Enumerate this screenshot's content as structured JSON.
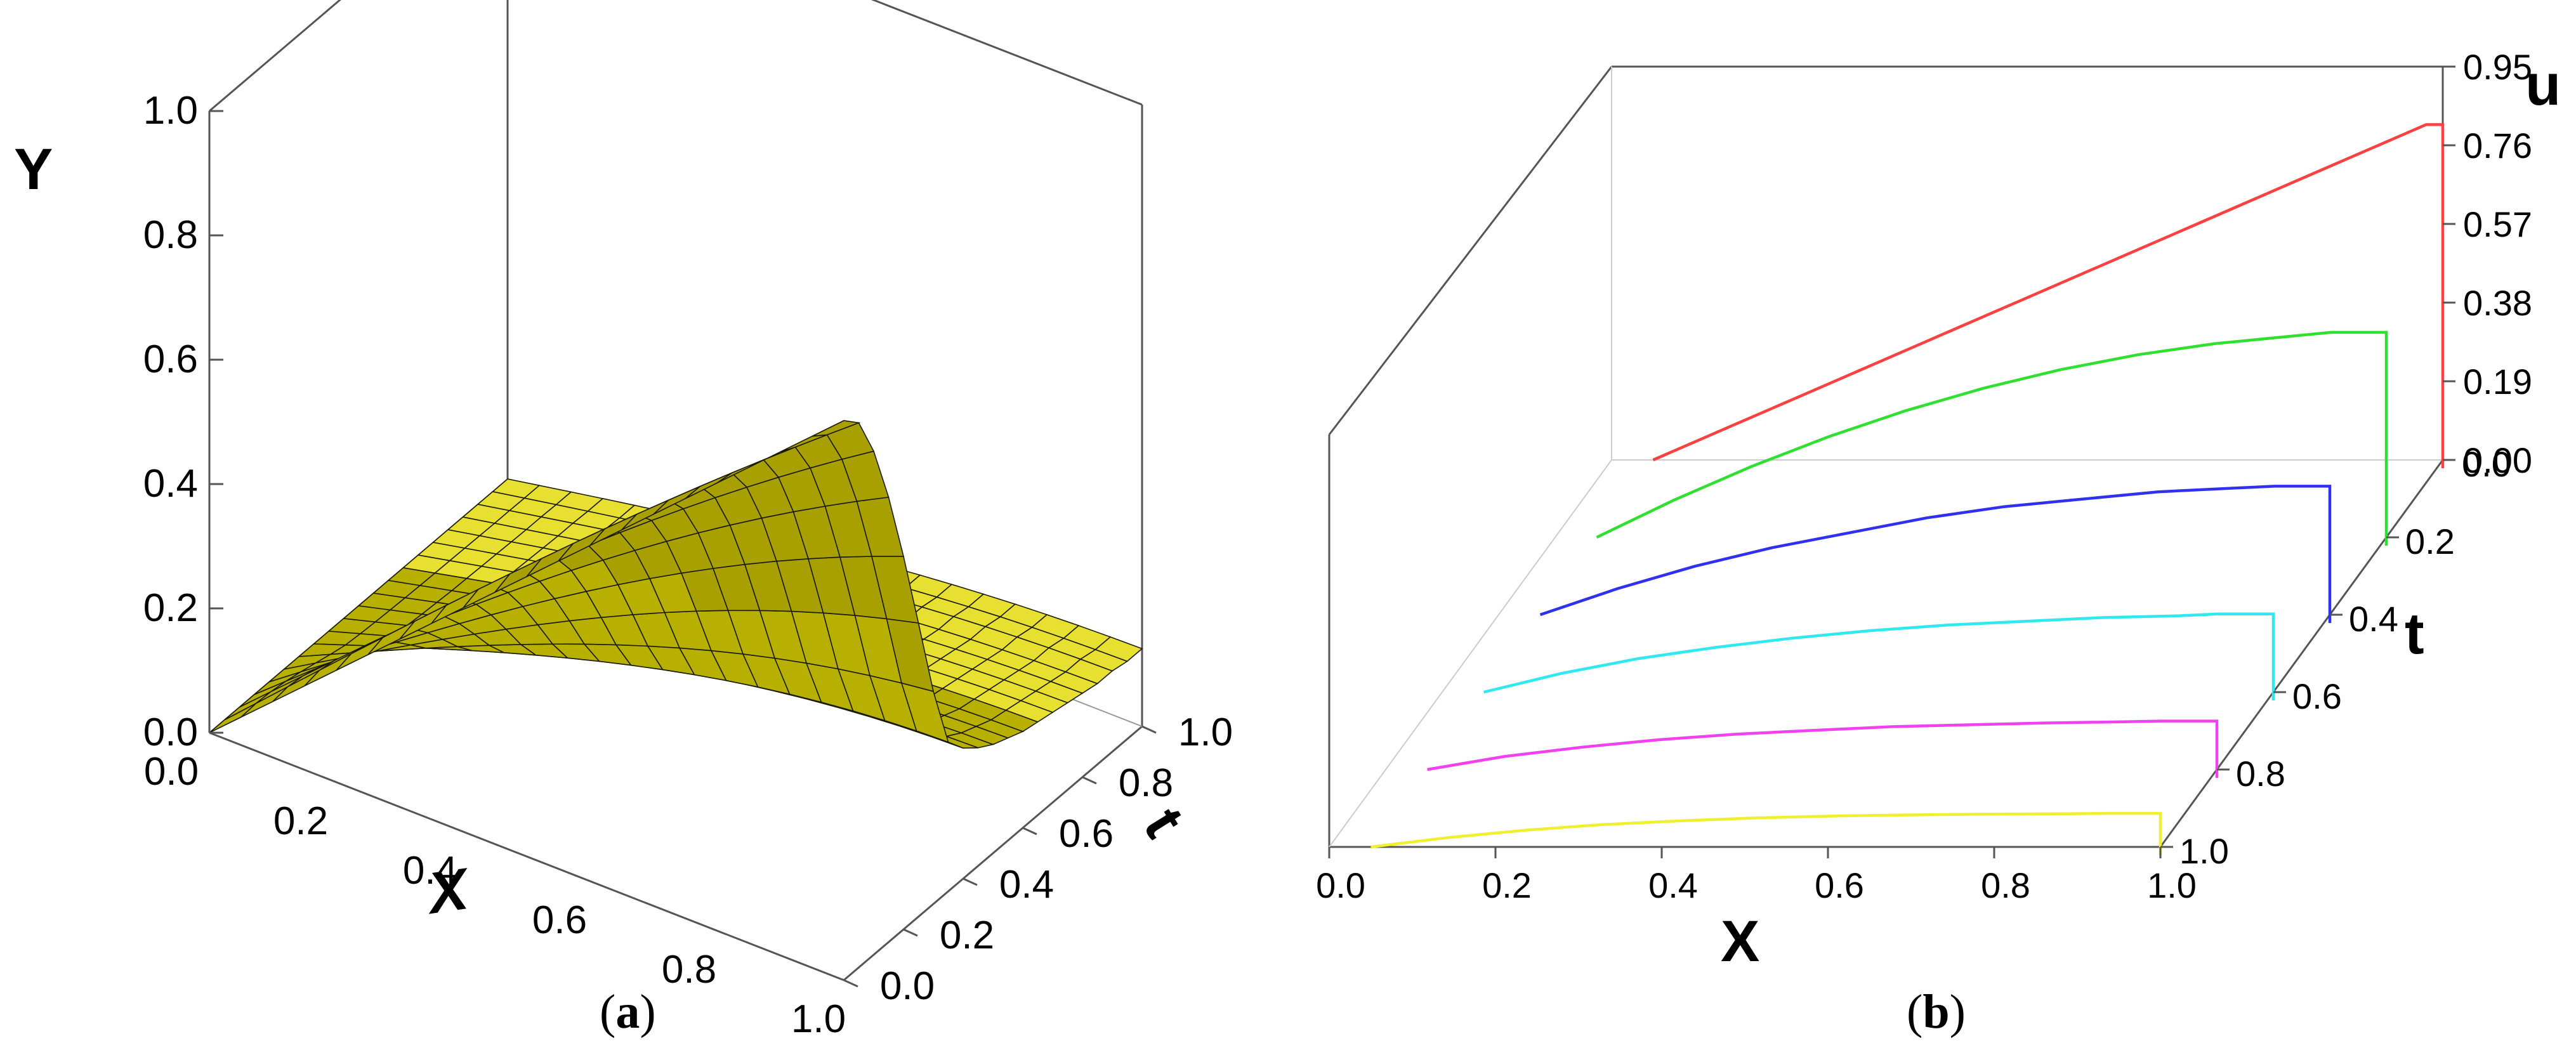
{
  "panels": {
    "a": {
      "caption_open": "(",
      "caption_letter": "a",
      "caption_close": ")"
    },
    "b": {
      "caption_open": "(",
      "caption_letter": "b",
      "caption_close": ")"
    }
  },
  "chart_data": [
    {
      "type": "surface",
      "panel": "a",
      "xlabel": "X",
      "ylabel": "t",
      "zlabel": "Y",
      "x_ticks": [
        "0.0",
        "0.2",
        "0.4",
        "0.6",
        "0.8",
        "1.0"
      ],
      "t_ticks": [
        "0.0",
        "0.2",
        "0.4",
        "0.6",
        "0.8",
        "1.0"
      ],
      "z_ticks": [
        "0.0",
        "0.2",
        "0.4",
        "0.6",
        "0.8",
        "1.0"
      ],
      "xlim": [
        0,
        1
      ],
      "tlim": [
        0,
        1
      ],
      "zlim": [
        0,
        1
      ],
      "x": [
        0,
        0.05,
        0.1,
        0.15,
        0.2,
        0.25,
        0.3,
        0.35,
        0.4,
        0.45,
        0.5,
        0.55,
        0.6,
        0.65,
        0.7,
        0.75,
        0.8,
        0.85,
        0.9,
        0.95,
        1.0
      ],
      "t": [
        0,
        0.05,
        0.1,
        0.15,
        0.2,
        0.25,
        0.3,
        0.35,
        0.4,
        0.45,
        0.5,
        0.55,
        0.6,
        0.65,
        0.7,
        0.75,
        0.8,
        0.85,
        0.9,
        0.95,
        1.0
      ],
      "surface_values_at_t0": [
        0,
        0.045,
        0.09,
        0.135,
        0.18,
        0.225,
        0.27,
        0.315,
        0.36,
        0.405,
        0.45,
        0.495,
        0.54,
        0.585,
        0.63,
        0.675,
        0.72,
        0.765,
        0.81,
        0.855,
        0.9
      ],
      "surface_values_at_x1": [
        0.9,
        0.74,
        0.6,
        0.49,
        0.4,
        0.33,
        0.28,
        0.24,
        0.21,
        0.19,
        0.175,
        0.165,
        0.155,
        0.15,
        0.145,
        0.14,
        0.135,
        0.13,
        0.13,
        0.125,
        0.125
      ],
      "surface_color": "#b8b000",
      "grid_color": "#1a1a00",
      "view": "3d-perspective",
      "grid": true
    },
    {
      "type": "line",
      "panel": "b",
      "xlabel": "X",
      "ylabel": "t",
      "zlabel": "u",
      "x_ticks": [
        "0.0",
        "0.2",
        "0.4",
        "0.6",
        "0.8",
        "1.0"
      ],
      "t_ticks": [
        "0.0",
        "0.2",
        "0.4",
        "0.6",
        "0.8",
        "1.0"
      ],
      "u_ticks": [
        "0.00",
        "0.19",
        "0.38",
        "0.57",
        "0.76",
        "0.95"
      ],
      "xlim": [
        0,
        1
      ],
      "tlim": [
        0,
        1
      ],
      "ulim": [
        0,
        0.95
      ],
      "x": [
        0,
        0.1,
        0.2,
        0.3,
        0.4,
        0.5,
        0.6,
        0.7,
        0.8,
        0.9,
        0.95,
        1.0
      ],
      "series": [
        {
          "t": 0.0,
          "color": "#ff4040",
          "values": [
            0,
            0.09,
            0.18,
            0.27,
            0.36,
            0.45,
            0.54,
            0.63,
            0.72,
            0.81,
            0.855,
            0.9
          ]
        },
        {
          "t": 0.2,
          "color": "#30e030",
          "values": [
            0,
            0.1,
            0.19,
            0.27,
            0.34,
            0.4,
            0.45,
            0.49,
            0.52,
            0.54,
            0.55,
            0.55
          ]
        },
        {
          "t": 0.4,
          "color": "#3030f0",
          "values": [
            0,
            0.07,
            0.13,
            0.18,
            0.22,
            0.26,
            0.29,
            0.31,
            0.33,
            0.34,
            0.345,
            0.345
          ]
        },
        {
          "t": 0.6,
          "color": "#30e8f0",
          "values": [
            0,
            0.05,
            0.09,
            0.12,
            0.145,
            0.165,
            0.18,
            0.19,
            0.2,
            0.205,
            0.21,
            0.21
          ]
        },
        {
          "t": 0.8,
          "color": "#f040f0",
          "values": [
            0,
            0.035,
            0.06,
            0.08,
            0.095,
            0.105,
            0.115,
            0.12,
            0.125,
            0.128,
            0.13,
            0.13
          ]
        },
        {
          "t": 1.0,
          "color": "#f0f030",
          "values": [
            0,
            0.025,
            0.045,
            0.06,
            0.07,
            0.078,
            0.083,
            0.086,
            0.088,
            0.089,
            0.09,
            0.09
          ]
        }
      ],
      "view": "3d-waterfall",
      "grid": false
    }
  ]
}
